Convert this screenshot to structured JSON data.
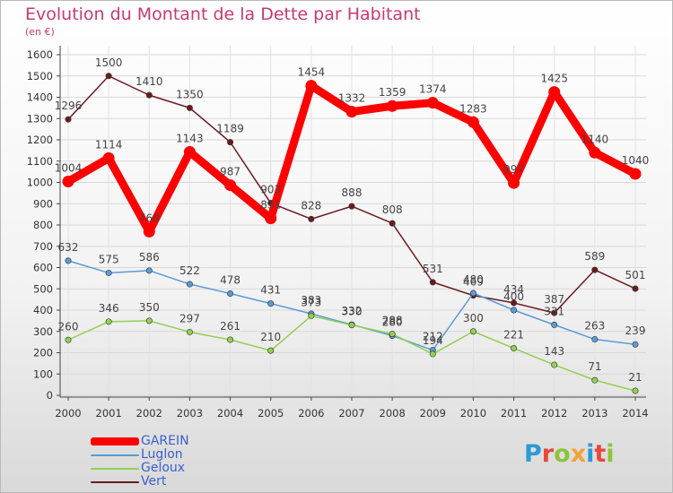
{
  "title": "Evolution du Montant de la Dette par Habitant",
  "subtitle": "(en €)",
  "logo": "Proxiti",
  "logo_colors": [
    "#2a9bd6",
    "#e8473a",
    "#8fc43b",
    "#f2a33a",
    "#2a9bd6",
    "#e8473a",
    "#8fc43b"
  ],
  "chart_data": {
    "type": "line",
    "categories": [
      "2000",
      "2001",
      "2002",
      "2003",
      "2004",
      "2005",
      "2006",
      "2007",
      "2008",
      "2009",
      "2010",
      "2011",
      "2012",
      "2013",
      "2014"
    ],
    "ylim": [
      0,
      1600
    ],
    "yticks": [
      "0",
      "100",
      "200",
      "300",
      "400",
      "500",
      "600",
      "700",
      "800",
      "900",
      "1000",
      "1100",
      "1200",
      "1300",
      "1400",
      "1500",
      "1600"
    ],
    "grid": true,
    "legend_position": "bottom-left",
    "series": [
      {
        "name": "Vert",
        "color": "#6b1a1f",
        "values": [
          1296,
          1500,
          1410,
          1350,
          1189,
          903,
          828,
          888,
          808,
          531,
          469,
          434,
          387,
          589,
          501
        ]
      },
      {
        "name": "Luglon",
        "color": "#5b9bd5",
        "values": [
          632,
          575,
          586,
          522,
          478,
          431,
          383,
          332,
          280,
          212,
          480,
          400,
          331,
          263,
          239
        ]
      },
      {
        "name": "Geloux",
        "color": "#92d050",
        "values": [
          260,
          346,
          350,
          297,
          261,
          210,
          373,
          330,
          288,
          194,
          300,
          221,
          143,
          71,
          21
        ]
      },
      {
        "name": "GAREIN",
        "color": "#ff0000",
        "values": [
          1004,
          1114,
          769,
          1143,
          987,
          831,
          1454,
          1332,
          1359,
          1374,
          1283,
          997,
          1425,
          1140,
          1040
        ]
      }
    ]
  },
  "legend": [
    {
      "name": "GAREIN",
      "color": "#ff0000"
    },
    {
      "name": "Luglon",
      "color": "#5b9bd5"
    },
    {
      "name": "Geloux",
      "color": "#92d050"
    },
    {
      "name": "Vert",
      "color": "#6b1a1f"
    }
  ]
}
